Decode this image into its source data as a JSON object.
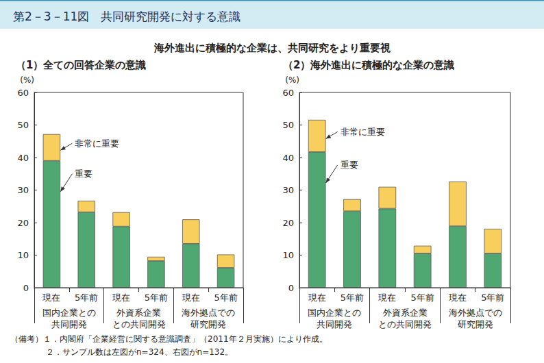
{
  "title": "第2－3－11図　共同研究開発に対する意識",
  "subtitle": "海外進出に積極的な企業は、共同研究をより重要視",
  "notes": [
    "（備考）１．内閣府「企業経営に関する意識調査」（2011年２月実施）により作成。",
    "２．サンプル数は左図がn=324、右図がn=132。"
  ],
  "chart_data": [
    {
      "type": "bar",
      "title": "（1）全ての回答企業の意識",
      "y_label": "(%)",
      "categories": [
        "現在",
        "5年前",
        "現在",
        "5年前",
        "現在",
        "5年前"
      ],
      "groups": [
        "国内企業との\n共同開発",
        "外資系企業\nとの共同開発",
        "海外拠点での\n研究開発"
      ],
      "series": [
        {
          "name": "重要",
          "color": "#4fa872",
          "values": [
            39.0,
            23.2,
            18.8,
            8.2,
            13.5,
            6.1
          ]
        },
        {
          "name": "非常に重要",
          "color": "#f8cf5c",
          "values": [
            8.2,
            3.5,
            4.4,
            1.3,
            7.5,
            4.1
          ]
        }
      ],
      "stacked": true,
      "ylim": [
        0,
        60
      ],
      "yticks": [
        0,
        10,
        20,
        30,
        40,
        50,
        60
      ],
      "grid": false
    },
    {
      "type": "bar",
      "title": "（2）海外進出に積極的な企業の意識",
      "y_label": "(%)",
      "categories": [
        "現在",
        "5年前",
        "現在",
        "5年前",
        "現在",
        "5年前"
      ],
      "groups": [
        "国内企業との\n共同開発",
        "外資系企業\nとの共同開発",
        "海外拠点での\n研究開発"
      ],
      "series": [
        {
          "name": "重要",
          "color": "#4fa872",
          "values": [
            41.7,
            23.5,
            24.3,
            10.5,
            18.9,
            10.5
          ]
        },
        {
          "name": "非常に重要",
          "color": "#f8cf5c",
          "values": [
            9.9,
            3.7,
            6.7,
            2.4,
            13.7,
            7.6
          ]
        }
      ],
      "stacked": true,
      "ylim": [
        0,
        60
      ],
      "yticks": [
        0,
        10,
        20,
        30,
        40,
        50,
        60
      ],
      "grid": false
    }
  ]
}
